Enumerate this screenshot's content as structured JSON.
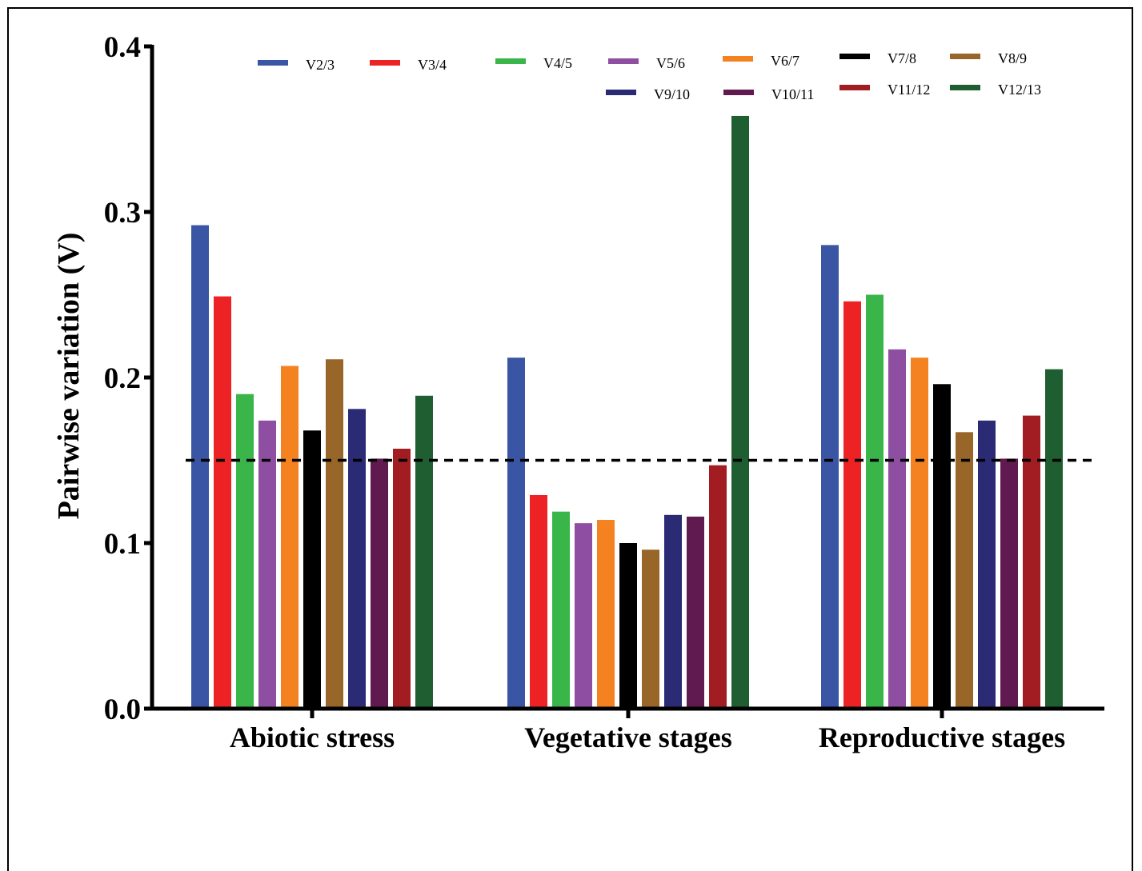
{
  "chart_data": {
    "type": "bar",
    "ylabel": "Pairwise variation (V)",
    "xlabel": "",
    "ylim": [
      0,
      0.4
    ],
    "yticks": [
      "0.0",
      "0.1",
      "0.2",
      "0.3",
      "0.4"
    ],
    "threshold": 0.15,
    "categories": [
      "Abiotic stress",
      "Vegetative stages",
      "Reproductive stages"
    ],
    "legend_placement": "top",
    "series": [
      {
        "name": "V2/3",
        "color": "#3a55a4",
        "values": [
          0.292,
          0.212,
          0.28
        ]
      },
      {
        "name": "V3/4",
        "color": "#ed2224",
        "values": [
          0.249,
          0.129,
          0.246
        ]
      },
      {
        "name": "V4/5",
        "color": "#39b54a",
        "values": [
          0.19,
          0.119,
          0.25
        ]
      },
      {
        "name": "V5/6",
        "color": "#8e4fa3",
        "values": [
          0.174,
          0.112,
          0.217
        ]
      },
      {
        "name": "V6/7",
        "color": "#f58220",
        "values": [
          0.207,
          0.114,
          0.212
        ]
      },
      {
        "name": "V7/8",
        "color": "#000000",
        "values": [
          0.168,
          0.1,
          0.196
        ]
      },
      {
        "name": "V8/9",
        "color": "#986628",
        "values": [
          0.211,
          0.096,
          0.167
        ]
      },
      {
        "name": "V9/10",
        "color": "#2b2a74",
        "values": [
          0.181,
          0.117,
          0.174
        ]
      },
      {
        "name": "V10/11",
        "color": "#611a50",
        "values": [
          0.151,
          0.116,
          0.151
        ]
      },
      {
        "name": "V11/12",
        "color": "#a11d22",
        "values": [
          0.157,
          0.147,
          0.177
        ]
      },
      {
        "name": "V12/13",
        "color": "#1e5e31",
        "values": [
          0.189,
          0.358,
          0.205
        ]
      }
    ]
  }
}
